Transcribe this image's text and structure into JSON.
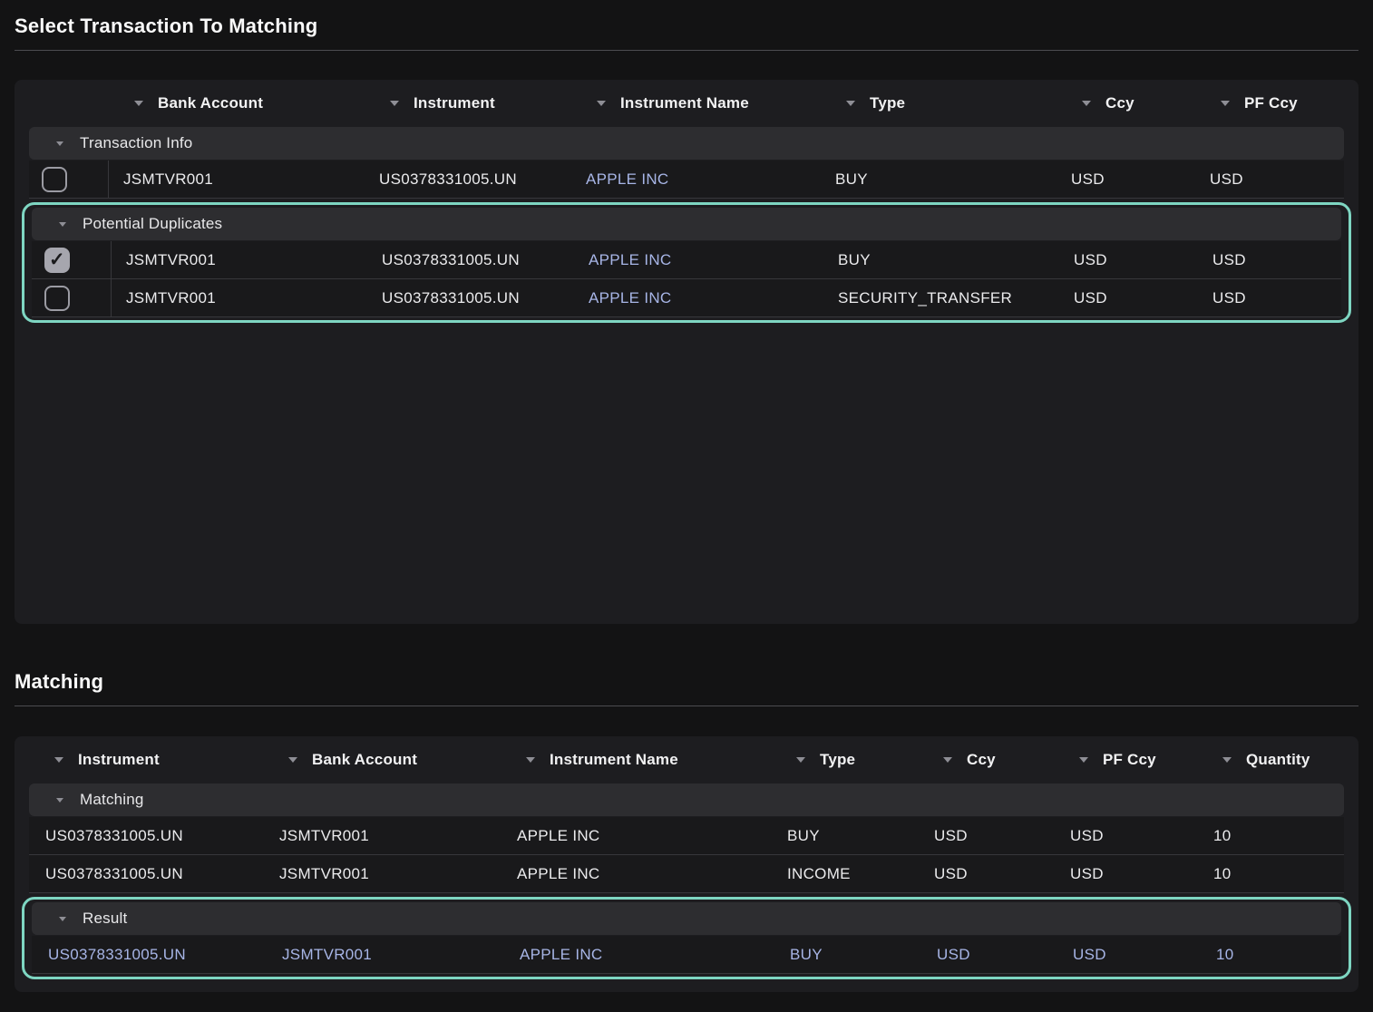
{
  "colors": {
    "highlight_teal": "#7ed6c2",
    "link_lavender": "#a7b5e6"
  },
  "s1": {
    "title": "Select Transaction To Matching",
    "columns": [
      "Bank Account",
      "Instrument",
      "Instrument Name",
      "Type",
      "Ccy",
      "PF Ccy"
    ],
    "groups": {
      "0": {
        "label": "Transaction Info",
        "rows": {
          "0": {
            "checked": false,
            "bank_account": "JSMTVR001",
            "instrument": "US0378331005.UN",
            "instrument_name": "APPLE INC",
            "type": "BUY",
            "ccy": "USD",
            "pf_ccy": "USD"
          }
        }
      },
      "1": {
        "label": "Potential Duplicates",
        "highlighted": true,
        "rows": {
          "0": {
            "checked": true,
            "bank_account": "JSMTVR001",
            "instrument": "US0378331005.UN",
            "instrument_name": "APPLE INC",
            "type": "BUY",
            "ccy": "USD",
            "pf_ccy": "USD"
          },
          "1": {
            "checked": false,
            "bank_account": "JSMTVR001",
            "instrument": "US0378331005.UN",
            "instrument_name": "APPLE INC",
            "type": "SECURITY_TRANSFER",
            "ccy": "USD",
            "pf_ccy": "USD"
          }
        }
      }
    }
  },
  "s2": {
    "title": "Matching",
    "columns": [
      "Instrument",
      "Bank Account",
      "Instrument Name",
      "Type",
      "Ccy",
      "PF Ccy",
      "Quantity"
    ],
    "groups": {
      "0": {
        "label": "Matching",
        "rows": {
          "0": {
            "instrument": "US0378331005.UN",
            "bank_account": "JSMTVR001",
            "instrument_name": "APPLE INC",
            "type": "BUY",
            "ccy": "USD",
            "pf_ccy": "USD",
            "quantity": "10"
          },
          "1": {
            "instrument": "US0378331005.UN",
            "bank_account": "JSMTVR001",
            "instrument_name": "APPLE INC",
            "type": "INCOME",
            "ccy": "USD",
            "pf_ccy": "USD",
            "quantity": "10"
          }
        }
      },
      "1": {
        "label": "Result",
        "highlighted": true,
        "rows": {
          "0": {
            "instrument": "US0378331005.UN",
            "bank_account": "JSMTVR001",
            "instrument_name": "APPLE INC",
            "type": "BUY",
            "ccy": "USD",
            "pf_ccy": "USD",
            "quantity": "10"
          }
        }
      }
    }
  }
}
